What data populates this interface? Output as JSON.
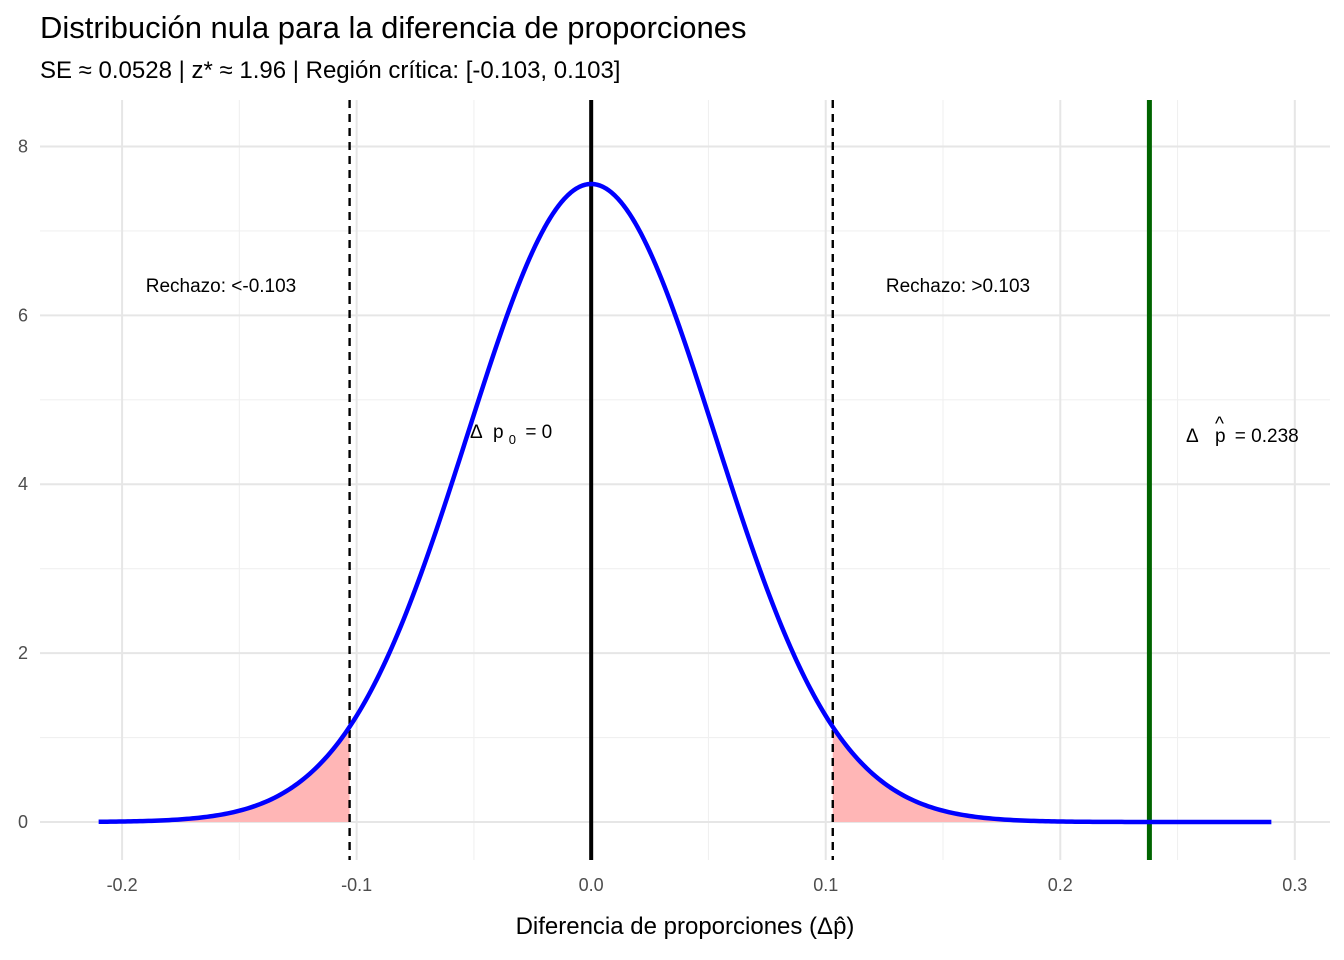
{
  "chart_data": {
    "type": "area",
    "title": "Distribución nula para la diferencia de proporciones",
    "subtitle": "SE ≈ 0.0528 | z* ≈ 1.96 | Región crítica: [-0.103, 0.103]",
    "xlabel": "Diferencia de proporciones (Δp̂)",
    "ylabel": "",
    "xlim": [
      -0.235,
      0.315
    ],
    "ylim": [
      -0.45,
      8.55
    ],
    "x_ticks": [
      "-0.2",
      "-0.1",
      "0.0",
      "0.1",
      "0.2",
      "0.3"
    ],
    "y_ticks": [
      "0",
      "2",
      "4",
      "6",
      "8"
    ],
    "grid": true,
    "curve": {
      "name": "",
      "mean": 0,
      "sd": 0.0528,
      "x_range": [
        -0.21,
        0.29
      ],
      "color": "#0000ff"
    },
    "critical_values": [
      -0.103,
      0.103
    ],
    "critical_line_color": "#000000",
    "rejection_fill_color": "#ffb6b6",
    "null_line": {
      "x": 0,
      "color": "#000000"
    },
    "observed_line": {
      "x": 0.238,
      "color": "#006400"
    },
    "annotations": {
      "reject_left": "Rechazo: <-0.103",
      "reject_right": "Rechazo: >0.103",
      "null_label": "Δ p₀ = 0",
      "null_delta": "Δ",
      "null_p": "p",
      "null_sub": "0",
      "null_eq": "= 0",
      "observed_label": "Δ p̂ = 0.238",
      "observed_delta": "Δ",
      "observed_p": "p",
      "observed_hat": "^",
      "observed_eq": "= 0.238"
    }
  }
}
